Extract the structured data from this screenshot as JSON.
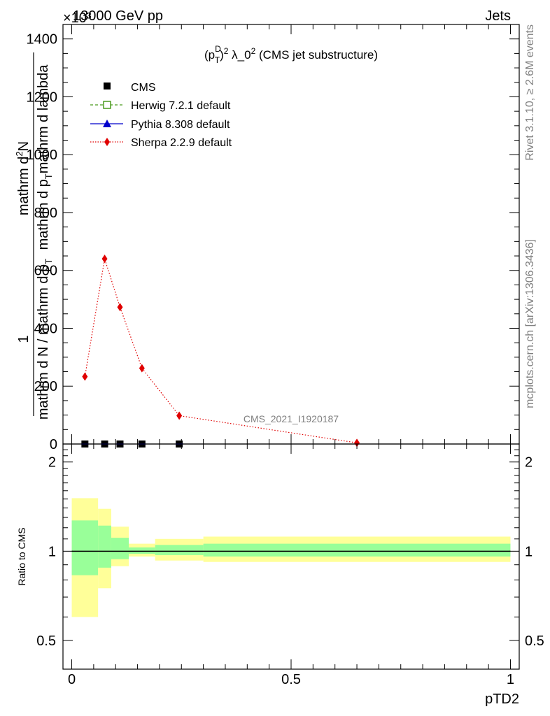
{
  "header": {
    "left": "13000 GeV pp",
    "right": "Jets",
    "exponent": "×10³"
  },
  "side": {
    "rivet": "Rivet 3.1.10, ≥ 2.6M events",
    "mcplots": "mcplots.cern.ch [arXiv:1306.3436]"
  },
  "chart_data": [
    {
      "type": "line",
      "title": "(p_T^D)^2 λ_0^2 (CMS jet substructure)",
      "title_parts": {
        "a": "(p",
        "sup1": "D",
        "sub1": "T",
        "b": ")",
        "sup2": "2",
        "c": " λ_0",
        "sup3": "2",
        "d": " (CMS jet substructure)"
      },
      "ylabel": "1 / (mathrm d N / mathrm d p_T) · mathrm d²N / (mathrm d p_T mathrm d lambda)",
      "ylabel_parts": {
        "num": "mathrm d²N",
        "num_a": "mathrm d",
        "num_sup": "2",
        "num_b": "N",
        "den": "mathrm d p_T mathrm d lambda",
        "one": "1",
        "den2": "mathrm d N / mathrm d p_T",
        "lbl_a": "mathrm d p",
        "lbl_sub": "T",
        "lbl_b": "mathrm d lambda",
        "lbl2_a": "mathrm d N / mathrm d p",
        "lbl2_sub": "T"
      },
      "ylim": [
        0,
        1450
      ],
      "yticks": [
        {
          "v": 0,
          "label": "0"
        },
        {
          "v": 200,
          "label": "200"
        },
        {
          "v": 400,
          "label": "400"
        },
        {
          "v": 600,
          "label": "600"
        },
        {
          "v": 800,
          "label": "800"
        },
        {
          "v": 1000,
          "label": "1000"
        },
        {
          "v": 1200,
          "label": "1200"
        },
        {
          "v": 1400,
          "label": "1400"
        }
      ],
      "xlim": [
        -0.02,
        1.02
      ],
      "watermark": "CMS_2021_I1920187",
      "legend_position": "top-left",
      "series": [
        {
          "name": "CMS",
          "color": "#000000",
          "marker": "square",
          "x": [
            0.03,
            0.075,
            0.11,
            0.16,
            0.245
          ],
          "values": [
            0,
            0,
            0,
            0,
            0
          ]
        },
        {
          "name": "Herwig 7.2.1 default",
          "color": "#4a9a1e",
          "marker": "open-square",
          "line": "dashed",
          "x": [],
          "values": []
        },
        {
          "name": "Pythia 8.308 default",
          "color": "#0000cc",
          "marker": "triangle",
          "line": "solid",
          "x": [],
          "values": []
        },
        {
          "name": "Sherpa 2.2.9 default",
          "color": "#e00000",
          "marker": "diamond",
          "line": "dotted",
          "x": [
            0.03,
            0.075,
            0.11,
            0.16,
            0.245,
            0.65
          ],
          "values": [
            233,
            640,
            473,
            262,
            98,
            4
          ]
        }
      ]
    },
    {
      "type": "area",
      "ylabel": "Ratio to CMS",
      "xlabel": "pTD2",
      "xlim": [
        -0.02,
        1.02
      ],
      "ylim": [
        0.4,
        2.3
      ],
      "log_y": true,
      "xticks": [
        {
          "v": 0,
          "label": "0"
        },
        {
          "v": 0.5,
          "label": "0.5"
        },
        {
          "v": 1,
          "label": "1"
        }
      ],
      "yticks": [
        {
          "v": 0.5,
          "label": "0.5"
        },
        {
          "v": 1,
          "label": "1"
        },
        {
          "v": 2,
          "label": "2"
        }
      ],
      "reference": 1,
      "bands": [
        {
          "x0": 0.0,
          "x1": 0.06,
          "inner": [
            0.83,
            1.27
          ],
          "outer": [
            0.6,
            1.51
          ]
        },
        {
          "x0": 0.06,
          "x1": 0.09,
          "inner": [
            0.88,
            1.22
          ],
          "outer": [
            0.75,
            1.39
          ]
        },
        {
          "x0": 0.09,
          "x1": 0.13,
          "inner": [
            0.94,
            1.11
          ],
          "outer": [
            0.89,
            1.21
          ]
        },
        {
          "x0": 0.13,
          "x1": 0.19,
          "inner": [
            0.98,
            1.03
          ],
          "outer": [
            0.96,
            1.06
          ]
        },
        {
          "x0": 0.19,
          "x1": 0.3,
          "inner": [
            0.97,
            1.05
          ],
          "outer": [
            0.93,
            1.1
          ]
        },
        {
          "x0": 0.3,
          "x1": 1.0,
          "inner": [
            0.96,
            1.06
          ],
          "outer": [
            0.92,
            1.12
          ]
        }
      ],
      "colors": {
        "inner": "#99ff99",
        "outer": "#ffff99",
        "line": "#000000"
      }
    }
  ]
}
